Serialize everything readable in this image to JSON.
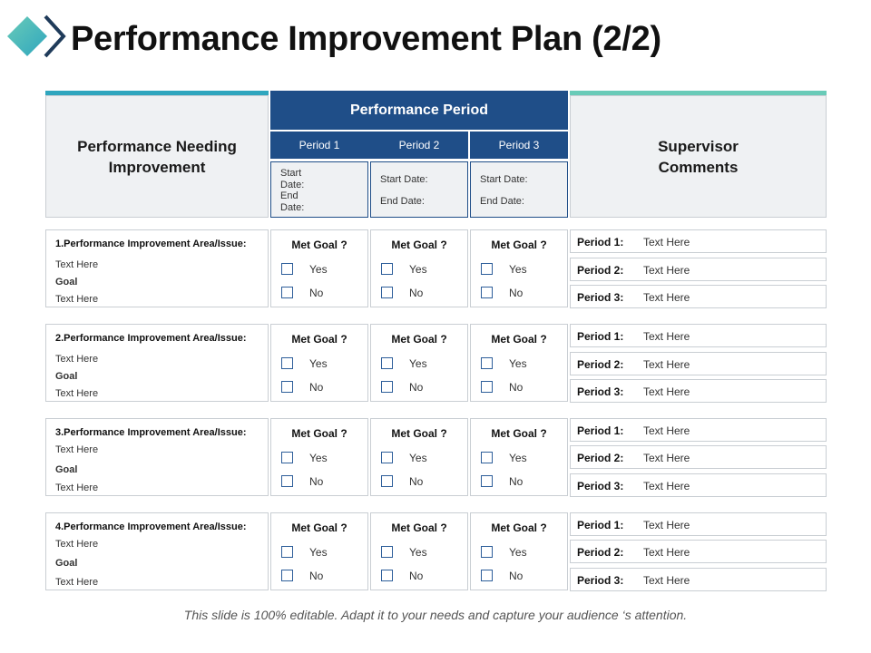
{
  "header": {
    "title": "Performance Improvement Plan (2/2)",
    "logo_icon": "diamond-chevron-icon",
    "logo_colors": [
      "#2fa6be",
      "#69cbb8",
      "#1f3b5a"
    ]
  },
  "table_header": {
    "left": "Performance Needing Improvement",
    "center": "Performance Period",
    "right": "Supervisor Comments",
    "periods": [
      {
        "label": "Period 1",
        "start": "Start Date:",
        "end": "End Date:"
      },
      {
        "label": "Period 2",
        "start": "Start Date:",
        "end": "End Date:"
      },
      {
        "label": "Period 3",
        "start": "Start Date:",
        "end": "End Date:"
      }
    ]
  },
  "rows": [
    {
      "area": "1.Performance Improvement Area/Issue:",
      "text1": "Text Here",
      "goal": "Goal",
      "text2": "Text Here",
      "met": [
        {
          "title": "Met Goal ?",
          "yes": "Yes",
          "no": "No"
        },
        {
          "title": "Met Goal ?",
          "yes": "Yes",
          "no": "No"
        },
        {
          "title": "Met Goal ?",
          "yes": "Yes",
          "no": "No"
        }
      ],
      "comments": [
        {
          "label": "Period 1:",
          "text": "Text Here"
        },
        {
          "label": "Period 2:",
          "text": "Text Here"
        },
        {
          "label": "Period 3:",
          "text": "Text Here"
        }
      ]
    },
    {
      "area": "2.Performance Improvement Area/Issue:",
      "text1": "Text Here",
      "goal": "Goal",
      "text2": "Text Here",
      "met": [
        {
          "title": "Met Goal ?",
          "yes": "Yes",
          "no": "No"
        },
        {
          "title": "Met Goal ?",
          "yes": "Yes",
          "no": "No"
        },
        {
          "title": "Met Goal ?",
          "yes": "Yes",
          "no": "No"
        }
      ],
      "comments": [
        {
          "label": "Period 1:",
          "text": "Text Here"
        },
        {
          "label": "Period 2:",
          "text": "Text Here"
        },
        {
          "label": "Period 3:",
          "text": "Text Here"
        }
      ]
    },
    {
      "area": "3.Performance Improvement Area/Issue:",
      "text1": "Text Here",
      "goal": "Goal",
      "text2": "Text Here",
      "met": [
        {
          "title": "Met Goal ?",
          "yes": "Yes",
          "no": "No"
        },
        {
          "title": "Met Goal ?",
          "yes": "Yes",
          "no": "No"
        },
        {
          "title": "Met Goal ?",
          "yes": "Yes",
          "no": "No"
        }
      ],
      "comments": [
        {
          "label": "Period 1:",
          "text": "Text Here"
        },
        {
          "label": "Period 2:",
          "text": "Text Here"
        },
        {
          "label": "Period 3:",
          "text": "Text Here"
        }
      ]
    },
    {
      "area": "4.Performance Improvement Area/Issue:",
      "text1": "Text Here",
      "goal": "Goal",
      "text2": "Text Here",
      "met": [
        {
          "title": "Met Goal ?",
          "yes": "Yes",
          "no": "No"
        },
        {
          "title": "Met Goal ?",
          "yes": "Yes",
          "no": "No"
        },
        {
          "title": "Met Goal ?",
          "yes": "Yes",
          "no": "No"
        }
      ],
      "comments": [
        {
          "label": "Period 1:",
          "text": "Text Here"
        },
        {
          "label": "Period 2:",
          "text": "Text Here"
        },
        {
          "label": "Period 3:",
          "text": "Text Here"
        }
      ]
    }
  ],
  "footer": {
    "text": "This slide is 100% editable. Adapt it to your needs and capture your  audience ‘s attention."
  }
}
